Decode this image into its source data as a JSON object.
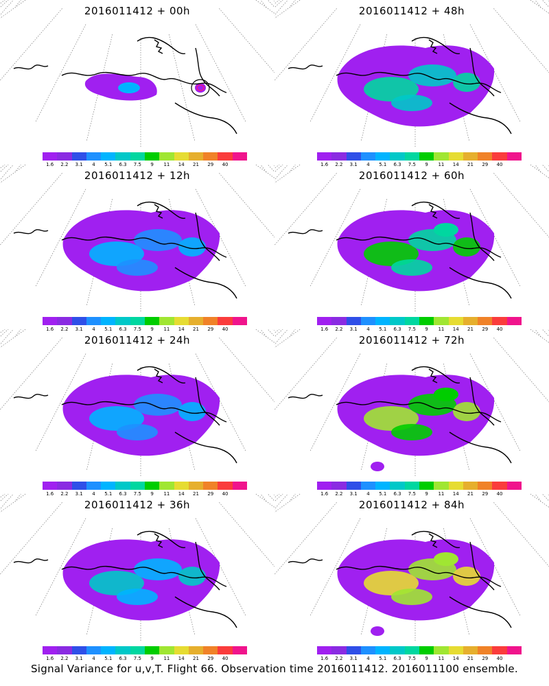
{
  "caption": "Signal Variance for u,v,T. Flight 66. Observation time 2016011412. 2016011100 ensemble.",
  "colorbar": {
    "labels": [
      "1.6",
      "2.2",
      "3.1",
      "4",
      "5.1",
      "6.3",
      "7.5",
      "9",
      "11",
      "14",
      "21",
      "29",
      "40"
    ],
    "colors": [
      "#a020f0",
      "#8a2be2",
      "#2f4fe8",
      "#1e90ff",
      "#00b4ff",
      "#00c8c8",
      "#00d7a0",
      "#00cd00",
      "#a0e632",
      "#e6dc32",
      "#e6af2d",
      "#f08228",
      "#fa3c3c",
      "#f0148c"
    ]
  },
  "panels": [
    {
      "title": "2016011412 + 00h",
      "level": 1
    },
    {
      "title": "2016011412 + 48h",
      "level": 4
    },
    {
      "title": "2016011412 + 12h",
      "level": 2
    },
    {
      "title": "2016011412 + 60h",
      "level": 5
    },
    {
      "title": "2016011412 + 24h",
      "level": 2
    },
    {
      "title": "2016011412 + 72h",
      "level": 6
    },
    {
      "title": "2016011412 + 36h",
      "level": 3
    },
    {
      "title": "2016011412 + 84h",
      "level": 7
    }
  ]
}
